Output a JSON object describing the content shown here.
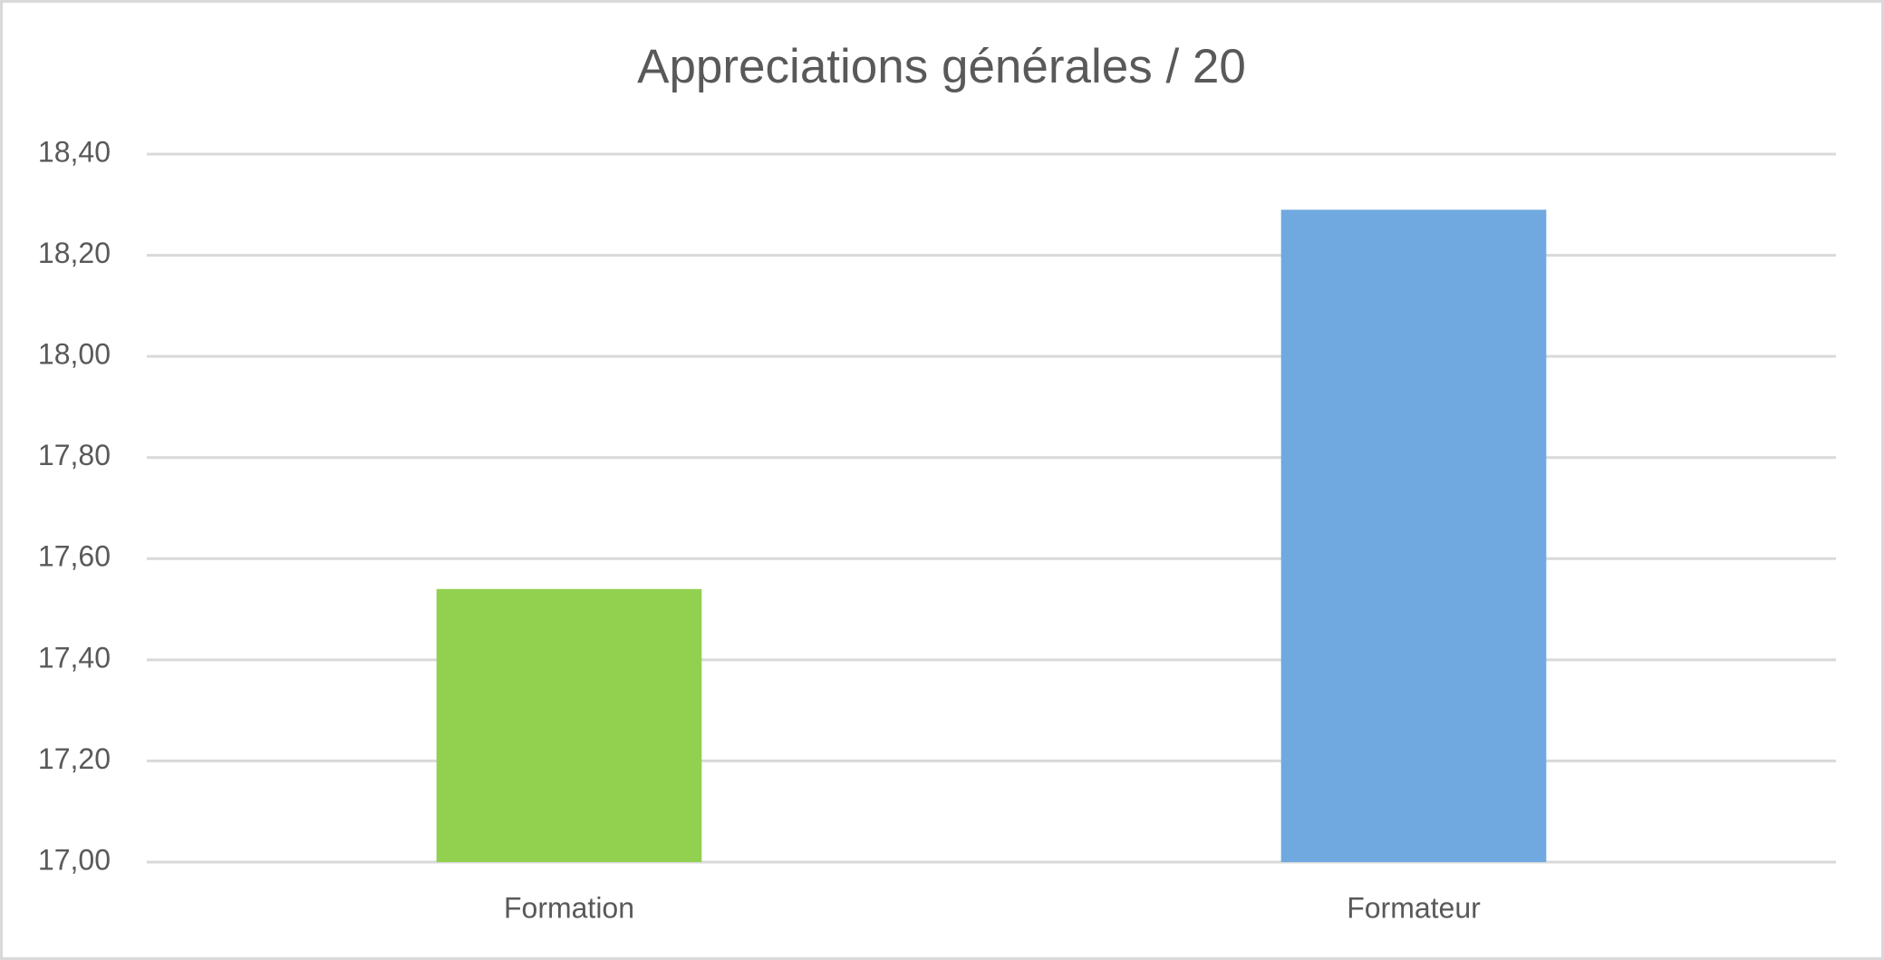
{
  "chart_data": {
    "type": "bar",
    "title": "Appreciations générales / 20",
    "categories": [
      "Formation",
      "Formateur"
    ],
    "values": [
      17.54,
      18.29
    ],
    "colors": [
      "#92d050",
      "#70a9e0"
    ],
    "ylim": [
      17,
      18.4
    ],
    "yticks": [
      {
        "value": 17,
        "label": "17,00"
      },
      {
        "value": 17.2,
        "label": "17,20"
      },
      {
        "value": 17.4,
        "label": "17,40"
      },
      {
        "value": 17.6,
        "label": "17,60"
      },
      {
        "value": 17.8,
        "label": "17,80"
      },
      {
        "value": 18,
        "label": "18,00"
      },
      {
        "value": 18.2,
        "label": "18,20"
      },
      {
        "value": 18.4,
        "label": "18,40"
      }
    ],
    "grid": true
  }
}
